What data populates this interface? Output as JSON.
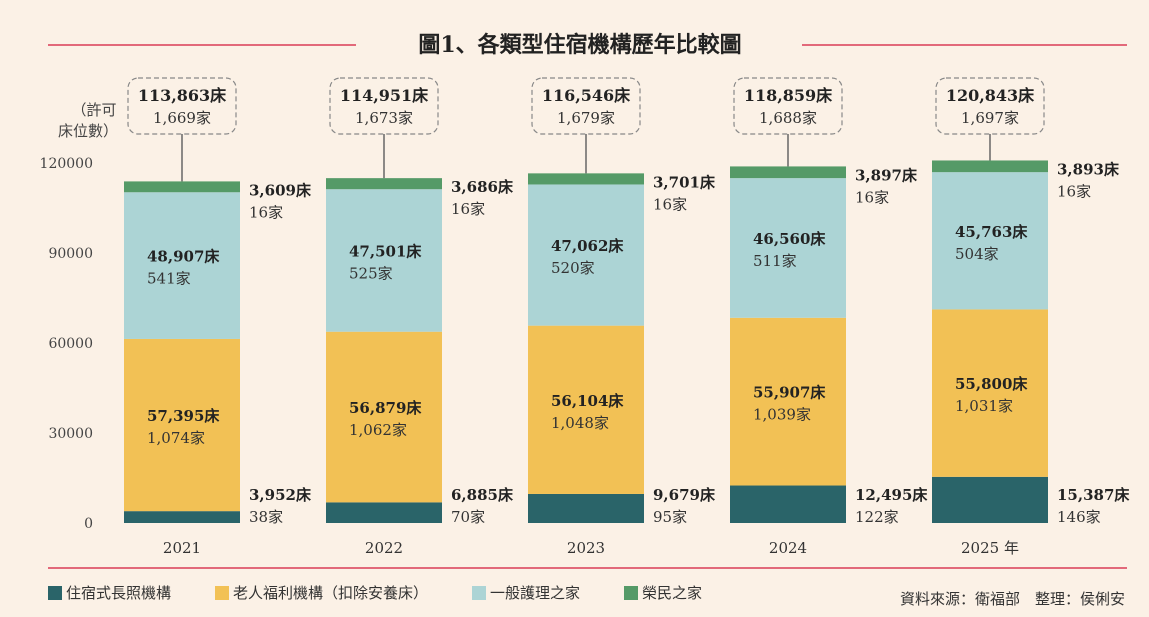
{
  "colors": {
    "background": "#fbf1e6",
    "rule": "#e2697a",
    "long_term_care": "#2a6469",
    "elderly_welfare": "#f2c155",
    "general_nursing": "#acd4d5",
    "veterans": "#559a67"
  },
  "chart_data": {
    "type": "bar",
    "stacked": true,
    "title": "圖1、各類型住宿機構歷年比較圖",
    "ylabel": "（許可床位數）",
    "ylim": [
      0,
      120000
    ],
    "yticks": [
      "0",
      "30000",
      "60000",
      "90000",
      "120000"
    ],
    "categories": [
      "2021",
      "2022",
      "2023",
      "2024",
      "2025 年"
    ],
    "series": [
      {
        "name": "住宿式長照機構",
        "key": "long_term_care",
        "values": [
          3952,
          6885,
          9679,
          12495,
          15387
        ],
        "bed_labels": [
          "3,952床",
          "6,885床",
          "9,679床",
          "12,495床",
          "15,387床"
        ],
        "count_labels": [
          "38家",
          "70家",
          "95家",
          "122家",
          "146家"
        ]
      },
      {
        "name": "老人福利機構（扣除安養床）",
        "key": "elderly_welfare",
        "values": [
          57395,
          56879,
          56104,
          55907,
          55800
        ],
        "bed_labels": [
          "57,395床",
          "56,879床",
          "56,104床",
          "55,907床",
          "55,800床"
        ],
        "count_labels": [
          "1,074家",
          "1,062家",
          "1,048家",
          "1,039家",
          "1,031家"
        ]
      },
      {
        "name": "一般護理之家",
        "key": "general_nursing",
        "values": [
          48907,
          47501,
          47062,
          46560,
          45763
        ],
        "bed_labels": [
          "48,907床",
          "47,501床",
          "47,062床",
          "46,560床",
          "45,763床"
        ],
        "count_labels": [
          "541家",
          "525家",
          "520家",
          "511家",
          "504家"
        ]
      },
      {
        "name": "榮民之家",
        "key": "veterans",
        "values": [
          3609,
          3686,
          3701,
          3897,
          3893
        ],
        "bed_labels": [
          "3,609床",
          "3,686床",
          "3,701床",
          "3,897床",
          "3,893床"
        ],
        "count_labels": [
          "16家",
          "16家",
          "16家",
          "16家",
          "16家"
        ]
      }
    ],
    "totals": {
      "beds": [
        "113,863床",
        "114,951床",
        "116,546床",
        "118,859床",
        "120,843床"
      ],
      "counts": [
        "1,669家",
        "1,673家",
        "1,679家",
        "1,688家",
        "1,697家"
      ]
    }
  },
  "legend": [
    {
      "label": "住宿式長照機構",
      "color": "#2a6469"
    },
    {
      "label": "老人福利機構（扣除安養床）",
      "color": "#f2c155"
    },
    {
      "label": "一般護理之家",
      "color": "#acd4d5"
    },
    {
      "label": "榮民之家",
      "color": "#559a67"
    }
  ],
  "source": "資料來源：衛福部　整理：侯俐安"
}
